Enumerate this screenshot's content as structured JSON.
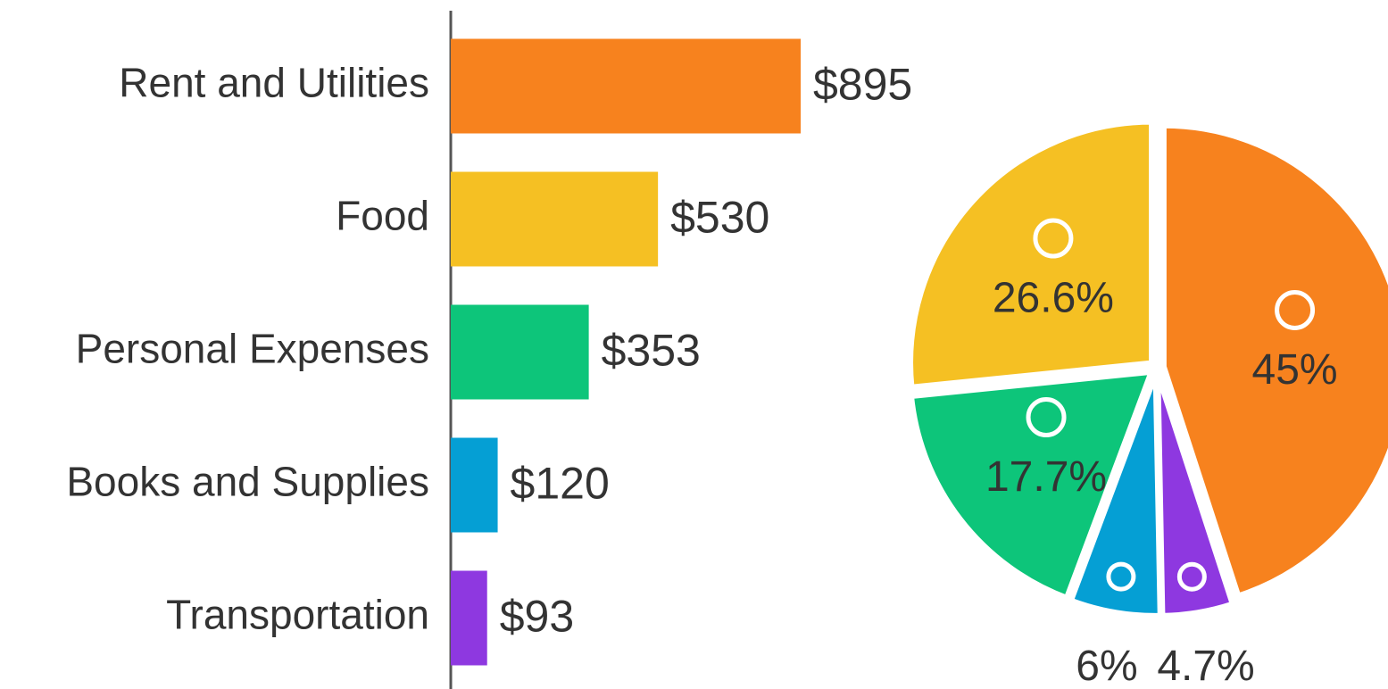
{
  "chart_data": [
    {
      "type": "bar",
      "orientation": "horizontal",
      "categories": [
        "Rent and Utilities",
        "Food",
        "Personal Expenses",
        "Books and Supplies",
        "Transportation"
      ],
      "values": [
        895,
        530,
        353,
        120,
        93
      ],
      "value_labels": [
        "$895",
        "$530",
        "$353",
        "$120",
        "$93"
      ],
      "colors": [
        "#f7821e",
        "#f5c023",
        "#0dc57a",
        "#059fd4",
        "#8e38e0"
      ]
    },
    {
      "type": "pie",
      "values": [
        45,
        4.7,
        6,
        17.7,
        26.6
      ],
      "value_labels": [
        "45%",
        "4.7%",
        "6%",
        "17.7%",
        "26.6%"
      ],
      "colors": [
        "#f7821e",
        "#8e38e0",
        "#059fd4",
        "#0dc57a",
        "#f5c023"
      ]
    }
  ]
}
